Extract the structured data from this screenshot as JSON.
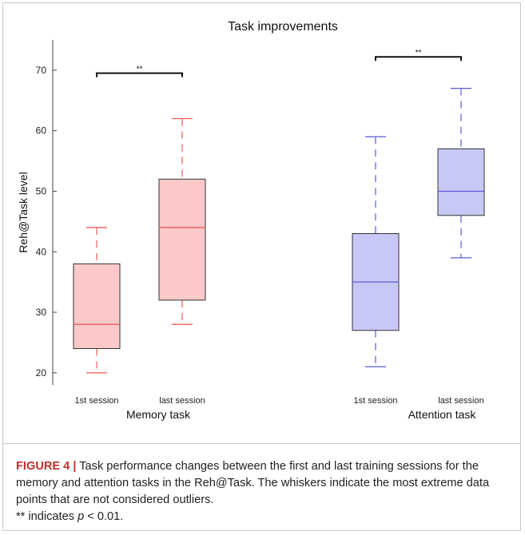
{
  "chart_data": {
    "type": "box",
    "title": "Task improvements",
    "ylabel": "Reh@Task level",
    "xlabel": "",
    "ylim": [
      18,
      75
    ],
    "yticks": [
      20,
      30,
      40,
      50,
      60,
      70
    ],
    "groups": [
      {
        "name": "Memory task",
        "color": "#f15a5a",
        "fill": "#fbc9c9",
        "boxes": [
          {
            "label": "1st session",
            "whisker_low": 20,
            "q1": 24,
            "median": 28,
            "q3": 38,
            "whisker_high": 44
          },
          {
            "label": "last session",
            "whisker_low": 28,
            "q1": 32,
            "median": 44,
            "q3": 52,
            "whisker_high": 62
          }
        ],
        "significance": "**"
      },
      {
        "name": "Attention task",
        "color": "#5a5ad6",
        "fill": "#c8c8f6",
        "boxes": [
          {
            "label": "1st session",
            "whisker_low": 21,
            "q1": 27,
            "median": 35,
            "q3": 43,
            "whisker_high": 59
          },
          {
            "label": "last session",
            "whisker_low": 39,
            "q1": 46,
            "median": 50,
            "q3": 57,
            "whisker_high": 67
          }
        ],
        "significance": "**"
      }
    ],
    "bracket_levels": [
      69.5,
      72.2
    ]
  },
  "caption": {
    "label": "FIGURE 4 |",
    "text": " Task performance changes between the first and last training sessions for the memory and attention tasks in the Reh@Task. The whiskers indicate the most extreme data points that are not considered outliers.",
    "note_prefix": "** indicates ",
    "note_var": "p",
    "note_suffix": " < 0.01."
  }
}
